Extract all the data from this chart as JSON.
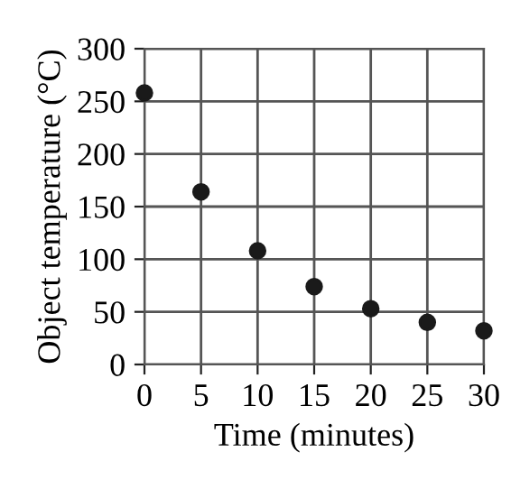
{
  "chart_data": {
    "type": "scatter",
    "xlabel": "Time (minutes)",
    "ylabel": "Object temperature (°C)",
    "x": [
      0,
      5,
      10,
      15,
      20,
      25,
      30
    ],
    "series": [
      {
        "color": "#1a1a1a",
        "values": [
          258,
          164,
          108,
          74,
          53,
          40,
          32
        ]
      }
    ],
    "xlim": [
      0,
      30
    ],
    "ylim": [
      0,
      300
    ],
    "xticks": [
      0,
      5,
      10,
      15,
      20,
      25,
      30
    ],
    "yticks": [
      0,
      50,
      100,
      150,
      200,
      250,
      300
    ],
    "grid": true,
    "marker": "circle"
  }
}
